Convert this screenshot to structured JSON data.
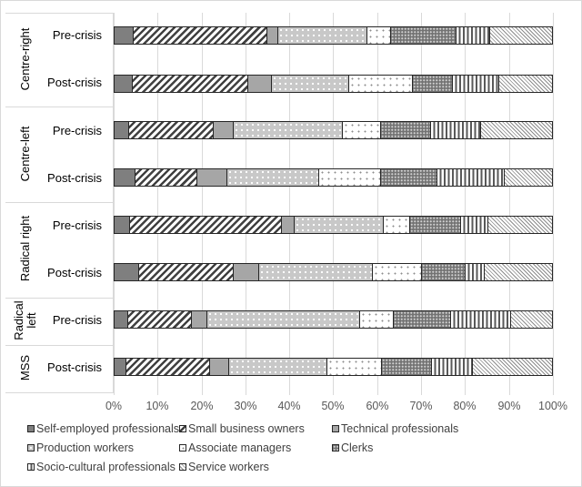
{
  "chart_data": {
    "type": "bar",
    "orientation": "horizontal",
    "stacked": "percent",
    "title": "",
    "xlabel": "",
    "ylabel": "",
    "xlim": [
      0,
      100
    ],
    "x_ticks": [
      "0%",
      "10%",
      "20%",
      "30%",
      "40%",
      "50%",
      "60%",
      "70%",
      "80%",
      "90%",
      "100%"
    ],
    "grid": true,
    "legend_position": "bottom",
    "groups": [
      {
        "name": "Centre-right",
        "rows": [
          "Pre-crisis",
          "Post-crisis"
        ]
      },
      {
        "name": "Centre-left",
        "rows": [
          "Pre-crisis",
          "Post-crisis"
        ]
      },
      {
        "name": "Radical right",
        "rows": [
          "Pre-crisis",
          "Post-crisis"
        ]
      },
      {
        "name": "Radical left",
        "rows": [
          "Pre-crisis"
        ]
      },
      {
        "name": "MSS",
        "rows": [
          "Post-crisis"
        ]
      }
    ],
    "categories": [
      "Centre-right Pre-crisis",
      "Centre-right Post-crisis",
      "Centre-left Pre-crisis",
      "Centre-left Post-crisis",
      "Radical right Pre-crisis",
      "Radical right Post-crisis",
      "Radical left Pre-crisis",
      "MSS Post-crisis"
    ],
    "series": [
      {
        "name": "Self-employed professionals",
        "pattern": "solid-dark-grey",
        "values": [
          4.6,
          4.3,
          3.5,
          5.0,
          3.7,
          5.8,
          3.3,
          2.9
        ]
      },
      {
        "name": "Small business owners",
        "pattern": "wide-diagonal-hatch",
        "values": [
          30.4,
          26.3,
          19.3,
          14.1,
          34.6,
          21.5,
          14.5,
          19.0
        ]
      },
      {
        "name": "Technical professionals",
        "pattern": "solid-light-grey",
        "values": [
          2.5,
          5.4,
          4.6,
          6.8,
          2.9,
          5.8,
          3.5,
          4.3
        ]
      },
      {
        "name": "Production workers",
        "pattern": "grey-with-white-dots",
        "values": [
          20.3,
          17.6,
          24.8,
          20.9,
          20.3,
          25.9,
          34.8,
          22.4
        ]
      },
      {
        "name": "Associate managers",
        "pattern": "white-with-sparse-dots",
        "values": [
          5.4,
          14.5,
          8.7,
          14.1,
          6.0,
          11.2,
          7.7,
          12.4
        ]
      },
      {
        "name": "Clerks",
        "pattern": "dark-checker",
        "values": [
          14.9,
          9.1,
          11.4,
          12.8,
          11.6,
          9.9,
          13.0,
          11.4
        ]
      },
      {
        "name": "Socio-cultural professionals",
        "pattern": "vertical-stripes",
        "values": [
          7.7,
          10.6,
          11.4,
          15.3,
          6.2,
          4.3,
          13.7,
          9.3
        ]
      },
      {
        "name": "Service workers",
        "pattern": "narrow-diagonal-hatch",
        "values": [
          14.3,
          12.2,
          16.4,
          11.0,
          14.7,
          15.6,
          9.5,
          18.2
        ]
      }
    ]
  },
  "axis": {
    "ticks": [
      "0%",
      "10%",
      "20%",
      "30%",
      "40%",
      "50%",
      "60%",
      "70%",
      "80%",
      "90%",
      "100%"
    ]
  },
  "groups": {
    "centre_right": "Centre-right",
    "centre_left": "Centre-left",
    "radical_right": "Radical right",
    "radical_left_line1": "Radical",
    "radical_left_line2": "left",
    "mss": "MSS"
  },
  "rows": {
    "pre": "Pre-crisis",
    "post": "Post-crisis"
  },
  "legend": [
    "Self-employed professionals",
    "Small business owners",
    "Technical professionals",
    "Production workers",
    "Associate managers",
    "Clerks",
    "Socio-cultural professionals",
    "Service workers"
  ]
}
